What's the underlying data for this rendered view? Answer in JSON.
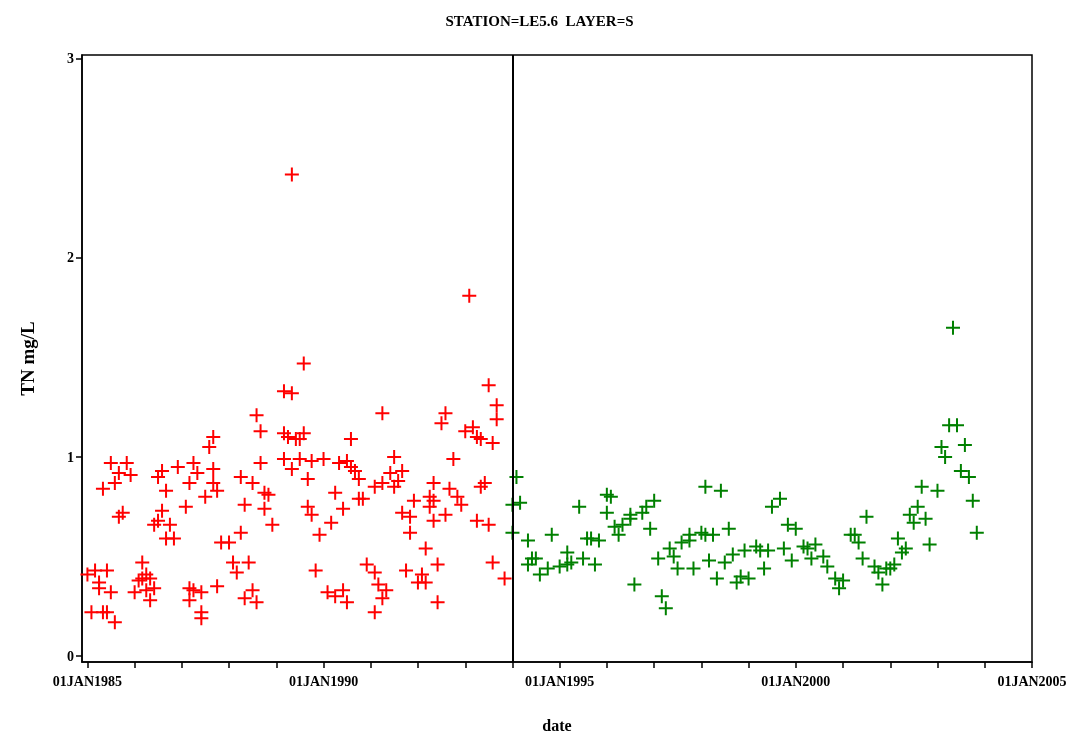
{
  "chart_data": {
    "type": "scatter",
    "title": "STATION=LE5.6  LAYER=S",
    "xlabel": "date",
    "ylabel": "TN mg/L",
    "xlim": [
      "1984-11-20",
      "2005-01-01"
    ],
    "ylim": [
      -0.03,
      3.02
    ],
    "yticks": [
      0,
      1,
      2,
      3
    ],
    "xticks": [
      {
        "value": "1985-01-01",
        "label": "01JAN1985"
      },
      {
        "value": "1986-01-01",
        "label": null
      },
      {
        "value": "1987-01-01",
        "label": null
      },
      {
        "value": "1988-01-01",
        "label": null
      },
      {
        "value": "1989-01-01",
        "label": null
      },
      {
        "value": "1990-01-01",
        "label": "01JAN1990"
      },
      {
        "value": "1991-01-01",
        "label": null
      },
      {
        "value": "1992-01-01",
        "label": null
      },
      {
        "value": "1993-01-01",
        "label": null
      },
      {
        "value": "1994-01-01",
        "label": null
      },
      {
        "value": "1995-01-01",
        "label": "01JAN1995"
      },
      {
        "value": "1996-01-01",
        "label": null
      },
      {
        "value": "1997-01-01",
        "label": null
      },
      {
        "value": "1998-01-01",
        "label": null
      },
      {
        "value": "1999-01-01",
        "label": null
      },
      {
        "value": "2000-01-01",
        "label": "01JAN2000"
      },
      {
        "value": "2001-01-01",
        "label": null
      },
      {
        "value": "2002-01-01",
        "label": null
      },
      {
        "value": "2003-01-01",
        "label": null
      },
      {
        "value": "2004-01-01",
        "label": null
      },
      {
        "value": "2005-01-01",
        "label": "01JAN2005"
      }
    ],
    "grid": false,
    "marker": "cross",
    "ref_lines": [
      {
        "axis": "x",
        "value": "1994-01-01",
        "color": "#000000"
      }
    ],
    "series": [
      {
        "color": "#ff0000",
        "x": [
          "1985-01",
          "1985-03",
          "1985-06",
          "1985-04",
          "1985-04",
          "1985-07",
          "1985-02",
          "1985-05",
          "1985-06",
          "1985-08",
          "1985-07",
          "1985-11",
          "1985-09",
          "1985-12",
          "1985-08",
          "1985-05",
          "1985-10",
          "1985-09",
          "1986-03",
          "1986-04",
          "1986-02",
          "1986-05",
          "1986-01",
          "1986-04",
          "1986-06",
          "1986-05",
          "1986-03",
          "1986-08",
          "1986-07",
          "1986-09",
          "1986-08",
          "1986-06",
          "1986-07",
          "1986-10",
          "1986-09",
          "1986-11",
          "1986-12",
          "1987-04",
          "1987-05",
          "1987-03",
          "1987-09",
          "1987-09",
          "1987-10",
          "1987-07",
          "1987-02",
          "1987-09",
          "1987-08",
          "1987-03",
          "1987-04",
          "1987-06",
          "1987-03",
          "1987-06",
          "1987-06",
          "1987-10",
          "1987-11",
          "1988-01",
          "1988-04",
          "1988-02",
          "1988-06",
          "1988-03",
          "1988-07",
          "1988-05",
          "1988-08",
          "1988-04",
          "1988-07",
          "1988-05",
          "1988-09",
          "1988-10",
          "1988-11",
          "1988-10",
          "1988-12",
          "1988-08",
          "1988-09",
          "1989-03",
          "1989-04",
          "1989-06",
          "1989-03",
          "1989-05",
          "1989-03",
          "1989-05",
          "1989-08",
          "1989-05",
          "1991-04",
          "1989-07",
          "1989-08",
          "1990-08",
          "1989-07",
          "1989-10",
          "1990-01",
          "1989-09",
          "1990-05",
          "1990-07",
          "1990-08",
          "1990-09",
          "1990-10",
          "1990-04",
          "1990-10",
          "1990-11",
          "1990-06",
          "1989-09",
          "1989-10",
          "1990-03",
          "1989-12",
          "1989-11",
          "1990-02",
          "1990-04",
          "1990-06",
          "1990-07",
          "1991-02",
          "1990-12",
          "1991-02",
          "1991-03",
          "1991-05",
          "1991-04",
          "1991-07",
          "1991-06",
          "1991-09",
          "1991-08",
          "1991-02",
          "1991-04",
          "1991-07",
          "1991-10",
          "1991-09",
          "1991-11",
          "1991-11",
          "1992-03",
          "1992-06",
          "1992-02",
          "1992-01",
          "1992-03",
          "1992-06",
          "1991-12",
          "1992-05",
          "1992-04",
          "1992-05",
          "1992-04",
          "1992-05",
          "1992-08",
          "1992-08",
          "1992-07",
          "1992-10",
          "1992-09",
          "1992-11",
          "1992-12",
          "1993-01",
          "1993-03",
          "1993-04",
          "1993-05",
          "1993-08",
          "1993-04",
          "1993-07",
          "1993-05",
          "1993-06",
          "1993-07",
          "1993-09",
          "1993-09",
          "1993-08",
          "1993-11",
          "1993-02"
        ],
        "values": [
          0.41,
          0.43,
          0.43,
          0.37,
          0.34,
          0.32,
          0.22,
          0.22,
          0.22,
          0.17,
          0.97,
          0.97,
          0.92,
          0.91,
          0.87,
          0.84,
          0.72,
          0.7,
          0.47,
          0.41,
          0.38,
          0.39,
          0.32,
          0.33,
          0.34,
          0.28,
          0.39,
          0.93,
          0.9,
          0.83,
          0.73,
          0.66,
          0.68,
          0.66,
          0.59,
          0.59,
          0.95,
          0.97,
          0.92,
          0.87,
          0.94,
          0.87,
          0.83,
          0.8,
          0.75,
          1.1,
          1.05,
          0.34,
          0.33,
          0.32,
          0.28,
          0.22,
          0.19,
          0.35,
          0.57,
          0.57,
          0.62,
          0.47,
          0.47,
          0.42,
          0.33,
          0.29,
          0.27,
          0.9,
          0.87,
          0.76,
          0.97,
          0.82,
          0.81,
          0.74,
          0.66,
          1.21,
          1.13,
          1.12,
          1.1,
          1.09,
          0.99,
          0.94,
          1.33,
          1.32,
          1.47,
          2.42,
          1.22,
          1.09,
          1.12,
          1.09,
          0.99,
          0.98,
          0.99,
          0.89,
          0.97,
          0.98,
          0.95,
          0.93,
          0.89,
          0.82,
          0.79,
          0.79,
          0.74,
          0.75,
          0.71,
          0.67,
          0.61,
          0.43,
          0.32,
          0.3,
          0.33,
          0.27,
          0.22,
          0.46,
          0.42,
          0.36,
          0.33,
          0.29,
          1.0,
          0.92,
          0.93,
          0.88,
          0.85,
          0.87,
          0.85,
          0.43,
          0.72,
          0.7,
          0.62,
          0.54,
          0.46,
          0.41,
          0.37,
          0.37,
          0.27,
          0.78,
          0.87,
          0.8,
          0.78,
          0.75,
          0.68,
          0.71,
          1.22,
          1.17,
          0.99,
          0.84,
          0.8,
          0.76,
          1.13,
          1.15,
          1.1,
          1.09,
          1.07,
          0.68,
          0.66,
          0.85,
          0.87,
          1.36,
          1.26,
          1.19,
          0.47,
          0.39,
          1.81
        ]
      },
      {
        "color": "#008000",
        "x": [
          "1994-02",
          "1994-01",
          "1994-03",
          "1994-01",
          "1994-05",
          "1994-06",
          "1994-07",
          "1994-05",
          "1994-08",
          "1994-10",
          "1994-11",
          "1995-03",
          "1995-01",
          "1995-03",
          "1995-04",
          "1995-07",
          "1995-10",
          "1995-06",
          "1995-08",
          "1995-09",
          "1995-11",
          "1996-01",
          "1996-01",
          "1996-02",
          "1996-03",
          "1996-04",
          "1996-05",
          "1996-07",
          "1996-07",
          "1996-10",
          "1996-11",
          "1997-01",
          "1996-12",
          "1996-08",
          "1997-02",
          "1997-03",
          "1997-04",
          "1997-05",
          "1997-06",
          "1997-07",
          "1997-11",
          "1997-08",
          "1997-10",
          "1997-10",
          "1998-01",
          "1998-02",
          "1998-04",
          "1998-02",
          "1998-06",
          "1998-08",
          "1998-03",
          "1998-07",
          "1998-09",
          "1998-05",
          "1998-10",
          "1998-11",
          "1999-01",
          "1998-12",
          "1999-03",
          "1999-04",
          "1999-06",
          "1999-05",
          "1999-07",
          "1999-09",
          "1999-11",
          "2000-01",
          "1999-10",
          "1999-12",
          "2000-03",
          "2000-04",
          "2000-06",
          "2000-05",
          "2000-08",
          "2000-09",
          "2000-11",
          "2001-01",
          "2000-12",
          "2001-03",
          "2001-04",
          "2001-05",
          "2001-06",
          "2001-07",
          "2001-09",
          "2001-10",
          "2001-11",
          "2001-12",
          "2002-01",
          "2002-02",
          "2002-03",
          "2002-05",
          "2002-04",
          "2002-06",
          "2002-07",
          "2002-08",
          "2002-10",
          "2002-11",
          "2002-09",
          "2003-01",
          "2003-02",
          "2003-03",
          "2003-04",
          "2003-06",
          "2003-05",
          "2003-08",
          "2003-07",
          "2003-09",
          "2003-10",
          "2003-11"
        ],
        "values": [
          0.9,
          0.76,
          0.77,
          0.62,
          0.58,
          0.49,
          0.49,
          0.46,
          0.41,
          0.44,
          0.61,
          0.52,
          0.45,
          0.46,
          0.47,
          0.49,
          0.46,
          0.75,
          0.59,
          0.59,
          0.58,
          0.72,
          0.81,
          0.8,
          0.65,
          0.61,
          0.66,
          0.69,
          0.71,
          0.72,
          0.75,
          0.78,
          0.64,
          0.36,
          0.49,
          0.3,
          0.24,
          0.54,
          0.5,
          0.44,
          0.44,
          0.57,
          0.58,
          0.61,
          0.62,
          0.61,
          0.61,
          0.85,
          0.83,
          0.64,
          0.48,
          0.47,
          0.51,
          0.39,
          0.37,
          0.4,
          0.39,
          0.53,
          0.55,
          0.53,
          0.53,
          0.44,
          0.75,
          0.79,
          0.66,
          0.64,
          0.54,
          0.48,
          0.55,
          0.54,
          0.56,
          0.49,
          0.5,
          0.45,
          0.39,
          0.38,
          0.34,
          0.61,
          0.61,
          0.57,
          0.49,
          0.7,
          0.45,
          0.42,
          0.36,
          0.44,
          0.44,
          0.46,
          0.59,
          0.54,
          0.52,
          0.71,
          0.67,
          0.75,
          0.69,
          0.56,
          0.85,
          0.83,
          1.05,
          1.0,
          1.16,
          1.16,
          1.65,
          1.06,
          0.93,
          0.9,
          0.78,
          0.62
        ]
      }
    ]
  }
}
